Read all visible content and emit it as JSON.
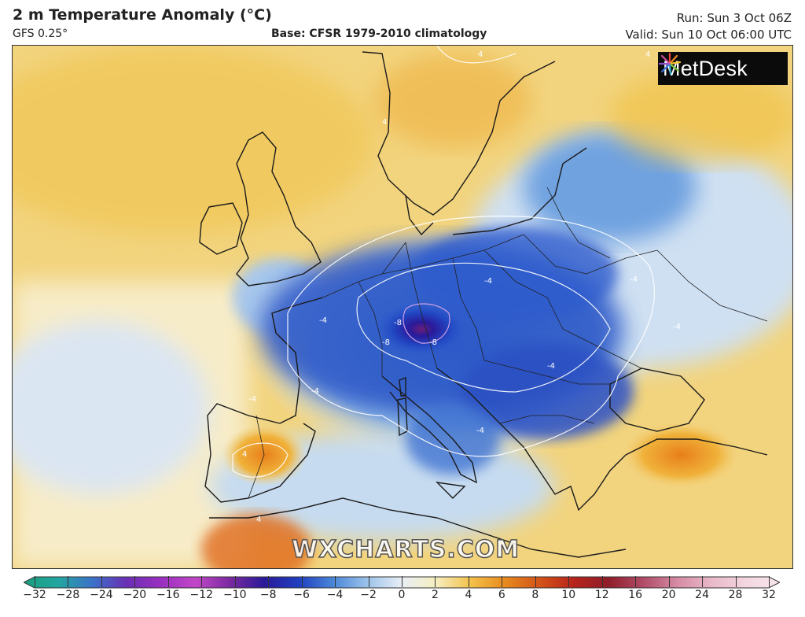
{
  "header": {
    "title": "2 m Temperature Anomaly (°C)",
    "model": "GFS 0.25°",
    "base": "Base: CFSR 1979-2010 climatology",
    "run": "Run: Sun 3 Oct 06Z",
    "valid": "Valid: Sun 10 Oct 06:00 UTC"
  },
  "logo": {
    "text": "MetDesk",
    "icon": "metdesk-starburst-icon"
  },
  "watermark": "WXCHARTS.COM",
  "legend": {
    "ticks": [
      "−32",
      "−28",
      "−24",
      "−20",
      "−16",
      "−12",
      "−10",
      "−8",
      "−6",
      "−4",
      "−2",
      "0",
      "2",
      "4",
      "6",
      "8",
      "10",
      "12",
      "16",
      "20",
      "24",
      "28",
      "32"
    ],
    "colors": [
      "#1a9e7d",
      "#23a6a0",
      "#3b72c9",
      "#6a2fb4",
      "#9a2fc0",
      "#c247c8",
      "#7b2aa0",
      "#2a1a9a",
      "#1f3fbf",
      "#4a86d8",
      "#9cc3ea",
      "#e8eef6",
      "#f6eec0",
      "#f3c24a",
      "#e88a1e",
      "#d4541a",
      "#b7241b",
      "#8f1d2a",
      "#b04a66",
      "#d58aa3",
      "#e9b8c8",
      "#f3d6df",
      "#f7e7ec"
    ]
  },
  "map": {
    "contour_labels": [
      "-4",
      "-4",
      "-4",
      "-4",
      "-4",
      "-8",
      "-8",
      "-8",
      "4",
      "4",
      "4",
      "4",
      "4",
      "-4",
      "-4",
      "-4"
    ]
  }
}
